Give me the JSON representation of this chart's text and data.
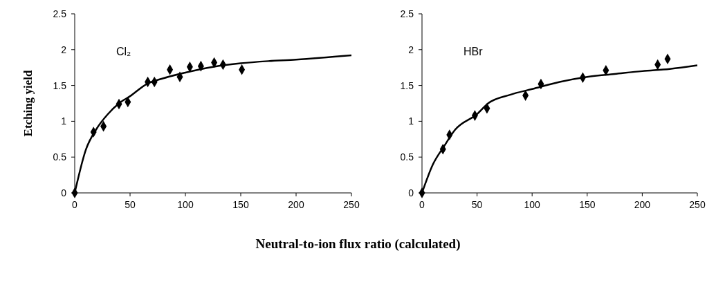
{
  "chart_data": [
    {
      "type": "scatter",
      "ylabel": "Etching yield",
      "xlabel": "Neutral-to-ion flux ratio (calculated)",
      "annotations": [
        "Cl₂"
      ],
      "xlim": [
        0,
        250
      ],
      "xticks": [
        0,
        50,
        100,
        150,
        200,
        250
      ],
      "ylim": [
        0,
        2.5
      ],
      "yticks": [
        0,
        0.5,
        1,
        1.5,
        2,
        2.5
      ],
      "series": [
        {
          "marker": "diamond",
          "color": "#000000",
          "x": [
            0,
            17,
            26,
            40,
            48,
            66,
            72,
            86,
            95,
            104,
            114,
            126,
            134,
            151
          ],
          "values": [
            0,
            0.85,
            0.93,
            1.24,
            1.27,
            1.55,
            1.55,
            1.72,
            1.62,
            1.76,
            1.77,
            1.82,
            1.79,
            1.72
          ]
        },
        {
          "type": "line",
          "color": "#000000",
          "x": [
            0,
            10,
            20,
            30,
            40,
            50,
            65,
            80,
            100,
            125,
            150,
            175,
            200,
            250
          ],
          "values": [
            0,
            0.6,
            0.9,
            1.1,
            1.25,
            1.35,
            1.52,
            1.6,
            1.68,
            1.76,
            1.81,
            1.84,
            1.86,
            1.92
          ]
        }
      ]
    },
    {
      "type": "scatter",
      "annotations": [
        "HBr"
      ],
      "xlim": [
        0,
        250
      ],
      "xticks": [
        0,
        50,
        100,
        150,
        200,
        250
      ],
      "ylim": [
        0,
        2.5
      ],
      "yticks": [
        0,
        0.5,
        1,
        1.5,
        2,
        2.5
      ],
      "series": [
        {
          "marker": "diamond",
          "color": "#000000",
          "x": [
            0,
            19,
            25,
            48,
            59,
            94,
            108,
            146,
            167,
            214,
            223
          ],
          "values": [
            0,
            0.61,
            0.81,
            1.08,
            1.18,
            1.36,
            1.52,
            1.61,
            1.71,
            1.79,
            1.87
          ]
        },
        {
          "type": "line",
          "color": "#000000",
          "x": [
            0,
            10,
            20,
            30,
            50,
            60,
            80,
            100,
            125,
            150,
            175,
            200,
            225,
            250
          ],
          "values": [
            0,
            0.4,
            0.65,
            0.88,
            1.1,
            1.25,
            1.37,
            1.45,
            1.55,
            1.62,
            1.66,
            1.7,
            1.73,
            1.78
          ]
        }
      ]
    }
  ]
}
